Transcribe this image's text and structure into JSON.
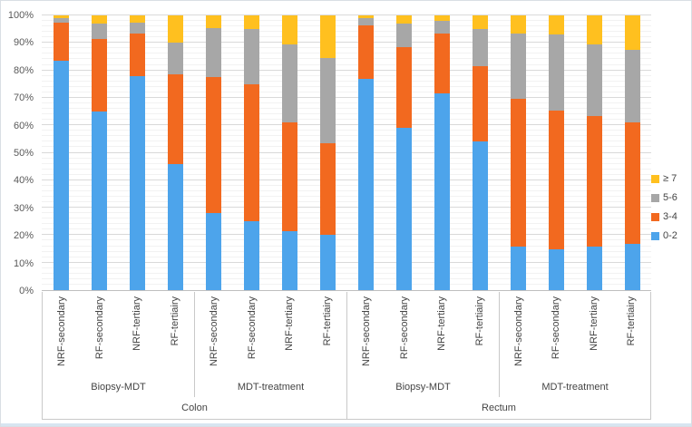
{
  "chart_data": {
    "type": "bar",
    "variant": "100-percent-stacked-column",
    "title": "",
    "xlabel": "",
    "ylabel": "",
    "ylim": [
      0,
      100
    ],
    "y_ticks": [
      "0%",
      "10%",
      "20%",
      "30%",
      "40%",
      "50%",
      "60%",
      "70%",
      "80%",
      "90%",
      "100%"
    ],
    "gridlines": {
      "major_interval": 10,
      "minor_interval": 2
    },
    "series": [
      {
        "key": "0-2",
        "color": "#4da4eb"
      },
      {
        "key": "3-4",
        "color": "#f2691f"
      },
      {
        "key": "5-6",
        "color": "#a7a7a7"
      },
      {
        "key": "≥ 7",
        "color": "#ffc01f"
      }
    ],
    "legend": {
      "position": "right",
      "items": [
        {
          "label": "≥ 7",
          "color": "#ffc01f"
        },
        {
          "label": "5-6",
          "color": "#a7a7a7"
        },
        {
          "label": "3-4",
          "color": "#f2691f"
        },
        {
          "label": "0-2",
          "color": "#4da4eb"
        }
      ]
    },
    "sites": [
      {
        "label": "Colon",
        "subgroups": [
          {
            "label": "Biopsy-MDT",
            "bars": [
              {
                "label": "NRF-secondary",
                "values": [
                  83.5,
                  14,
                  1.5,
                  1
                ]
              },
              {
                "label": "RF-secondary",
                "values": [
                  65,
                  26.5,
                  5.5,
                  3
                ]
              },
              {
                "label": "NRF-tertiary",
                "values": [
                  78,
                  15.5,
                  4,
                  2.5
                ]
              },
              {
                "label": "RF-tertiairy",
                "values": [
                  46,
                  32.5,
                  11.5,
                  10
                ]
              }
            ]
          },
          {
            "label": "MDT-treatment",
            "bars": [
              {
                "label": "NRF-secondary",
                "values": [
                  28,
                  49.5,
                  18,
                  4.5
                ]
              },
              {
                "label": "RF-secondary",
                "values": [
                  25,
                  50,
                  20,
                  5
                ]
              },
              {
                "label": "NRF-tertiary",
                "values": [
                  21.5,
                  39.5,
                  28.5,
                  10.5
                ]
              },
              {
                "label": "RF-tertiairy",
                "values": [
                  20,
                  33.5,
                  31,
                  15.5
                ]
              }
            ]
          }
        ]
      },
      {
        "label": "Rectum",
        "subgroups": [
          {
            "label": "Biopsy-MDT",
            "bars": [
              {
                "label": "NRF-secondary",
                "values": [
                  77,
                  19.5,
                  2.5,
                  1
                ]
              },
              {
                "label": "RF-secondary",
                "values": [
                  59,
                  29.5,
                  8.5,
                  3
                ]
              },
              {
                "label": "NRF-tertiary",
                "values": [
                  71.5,
                  22,
                  4.5,
                  2
                ]
              },
              {
                "label": "RF-tertiairy",
                "values": [
                  54,
                  27.5,
                  13.5,
                  5
                ]
              }
            ]
          },
          {
            "label": "MDT-treatment",
            "bars": [
              {
                "label": "NRF-secondary",
                "values": [
                  16,
                  53.5,
                  24,
                  6.5
                ]
              },
              {
                "label": "RF-secondary",
                "values": [
                  15,
                  50.5,
                  27.5,
                  7
                ]
              },
              {
                "label": "NRF-tertiary",
                "values": [
                  16,
                  47.5,
                  26,
                  10.5
                ]
              },
              {
                "label": "RF-tertiairy",
                "values": [
                  17,
                  44,
                  26.5,
                  12.5
                ]
              }
            ]
          }
        ]
      }
    ]
  }
}
